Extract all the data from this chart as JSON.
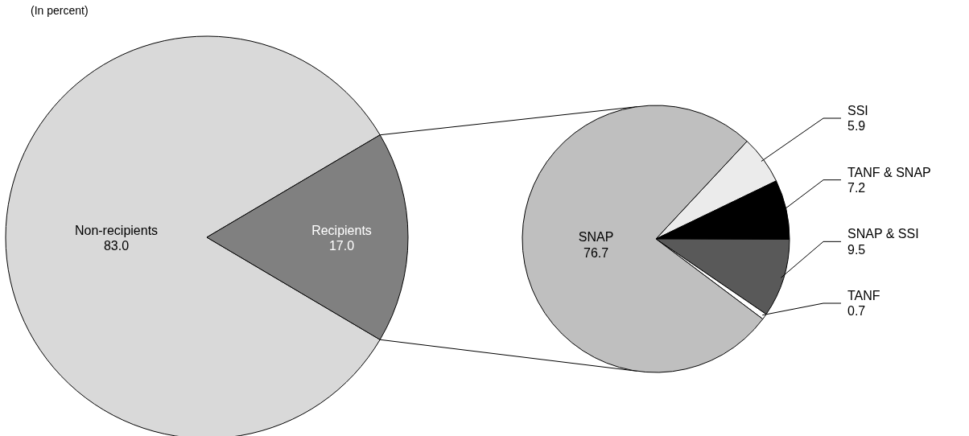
{
  "chart_data": [
    {
      "type": "pie",
      "subtitle": "(In percent)",
      "categories": [
        "Non-recipients",
        "Recipients"
      ],
      "values": [
        83.0,
        17.0
      ],
      "value_labels": [
        "83.0",
        "17.0"
      ],
      "colors": [
        "#d9d9d9",
        "#808080"
      ]
    },
    {
      "type": "pie",
      "categories": [
        "SSI",
        "TANF & SNAP",
        "SNAP & SSI",
        "TANF",
        "SNAP"
      ],
      "values": [
        5.9,
        7.2,
        9.5,
        0.7,
        76.7
      ],
      "value_labels": [
        "5.9",
        "7.2",
        "9.5",
        "0.7",
        "76.7"
      ],
      "colors": [
        "#ebebeb",
        "#000000",
        "#595959",
        "#ffffff",
        "#bfbfbf"
      ]
    }
  ]
}
